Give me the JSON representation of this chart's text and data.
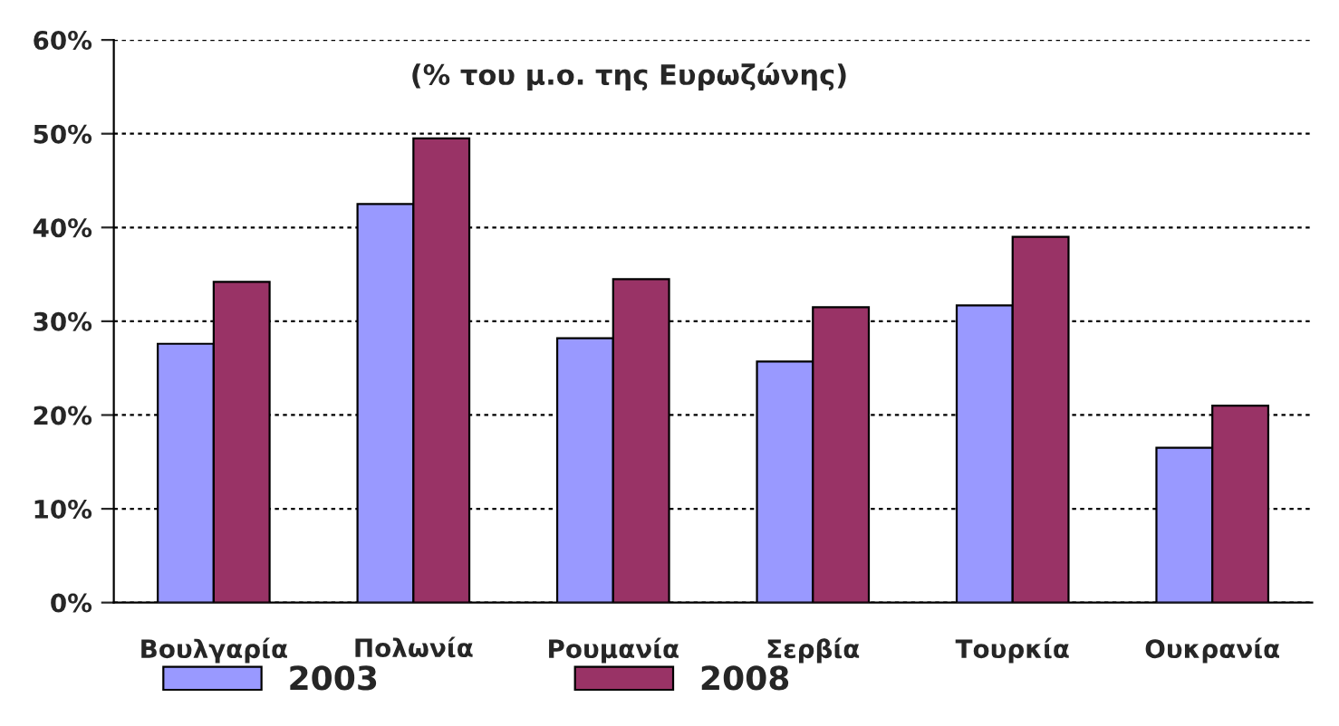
{
  "chart_data": {
    "type": "bar",
    "subtitle": "(% του μ.ο. της Ευρωζώνης)",
    "categories": [
      "Βουλγαρία",
      "Πολωνία",
      "Ρουμανία",
      "Σερβία",
      "Τουρκία",
      "Ουκρανία"
    ],
    "series": [
      {
        "name": "2003",
        "color": "#9999ff",
        "values": [
          27.6,
          42.5,
          28.2,
          25.7,
          31.7,
          16.5
        ]
      },
      {
        "name": "2008",
        "color": "#993366",
        "values": [
          34.2,
          49.5,
          34.5,
          31.5,
          39.0,
          21.0
        ]
      }
    ],
    "ylim": [
      0,
      60
    ],
    "yticks": [
      {
        "value": 0,
        "label": "0%"
      },
      {
        "value": 10,
        "label": "10%"
      },
      {
        "value": 20,
        "label": "20%"
      },
      {
        "value": 30,
        "label": "30%"
      },
      {
        "value": 40,
        "label": "40%"
      },
      {
        "value": 50,
        "label": "50%"
      },
      {
        "value": 60,
        "label": "60%"
      }
    ],
    "grid": "y",
    "legend": "bottom left"
  }
}
